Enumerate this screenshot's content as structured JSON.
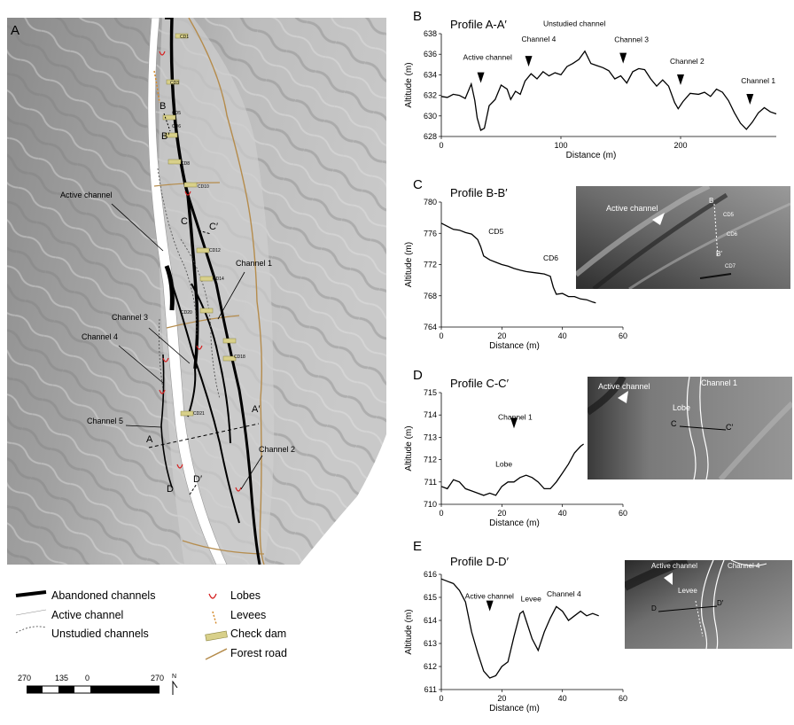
{
  "panels": {
    "A": "A",
    "B": "B",
    "C": "C",
    "D": "D",
    "E": "E"
  },
  "map": {
    "labels": {
      "active_channel": "Active channel",
      "channel_1": "Channel 1",
      "channel_2": "Channel 2",
      "channel_3": "Channel 3",
      "channel_4": "Channel 4",
      "channel_5": "Channel 5",
      "A": "A",
      "A_prime": "A′",
      "B": "B",
      "B_prime": "B′",
      "C": "C",
      "C_prime": "C′",
      "D": "D",
      "D_prime": "D′"
    },
    "check_dams": [
      "CD1",
      "CD3",
      "CD5",
      "CD6",
      "CD8",
      "CD10",
      "CD12",
      "CD14",
      "CD20",
      "CD18",
      "CD21"
    ]
  },
  "legend": {
    "abandoned": "Abandoned channels",
    "active": "Active channel",
    "unstudied": "Unstudied channels",
    "lobes": "Lobes",
    "levees": "Levees",
    "check_dam": "Check dam",
    "forest_road": "Forest road"
  },
  "scalebar": {
    "ticks": [
      "270",
      "135",
      "0",
      "270"
    ],
    "north": "N"
  },
  "chart_data": [
    {
      "id": "B",
      "type": "line",
      "title": "Profile A-A′",
      "xlabel": "Distance (m)",
      "ylabel": "Altitude (m)",
      "xlim": [
        0,
        280
      ],
      "ylim": [
        628,
        638
      ],
      "xticks": [
        0,
        100,
        200
      ],
      "yticks": [
        628,
        630,
        632,
        634,
        636,
        638
      ],
      "x": [
        0,
        5,
        10,
        15,
        20,
        25,
        28,
        30,
        33,
        36,
        40,
        45,
        50,
        55,
        58,
        62,
        66,
        70,
        75,
        80,
        85,
        90,
        95,
        100,
        105,
        110,
        115,
        120,
        125,
        130,
        135,
        140,
        145,
        150,
        155,
        160,
        165,
        170,
        175,
        180,
        185,
        190,
        195,
        198,
        202,
        208,
        215,
        220,
        225,
        230,
        235,
        240,
        245,
        250,
        255,
        260,
        265,
        270,
        275,
        280
      ],
      "y": [
        631.9,
        631.8,
        632.1,
        632.0,
        631.7,
        633.1,
        631.5,
        629.8,
        628.6,
        628.8,
        631.0,
        631.6,
        633.0,
        632.6,
        631.6,
        632.4,
        632.1,
        633.4,
        634.1,
        633.6,
        634.3,
        633.9,
        634.2,
        634.0,
        634.8,
        635.1,
        635.5,
        636.3,
        635.1,
        634.9,
        634.7,
        634.4,
        633.6,
        633.9,
        633.2,
        634.3,
        634.6,
        634.5,
        633.6,
        632.9,
        633.5,
        632.9,
        631.3,
        630.7,
        631.4,
        632.2,
        632.1,
        632.3,
        631.9,
        632.6,
        632.3,
        631.5,
        630.3,
        629.3,
        628.7,
        629.4,
        630.3,
        630.8,
        630.4,
        630.2
      ],
      "annotations": [
        {
          "text": "Active channel",
          "x": 33,
          "y": 633.2
        },
        {
          "text": "Channel 4",
          "x": 73,
          "y": 634.8
        },
        {
          "text": "Unstudied channel",
          "x": 97,
          "y": 636.3
        },
        {
          "text": "Channel 3",
          "x": 152,
          "y": 635.1
        },
        {
          "text": "Channel 2",
          "x": 200,
          "y": 633.0
        },
        {
          "text": "Channel 1",
          "x": 258,
          "y": 631.1
        }
      ]
    },
    {
      "id": "C",
      "type": "line",
      "title": "Profile B-B′",
      "xlabel": "Distance (m)",
      "ylabel": "Altitude (m)",
      "xlim": [
        0,
        60
      ],
      "ylim": [
        764,
        780
      ],
      "xticks": [
        0,
        20,
        40,
        60
      ],
      "yticks": [
        764,
        768,
        772,
        776,
        780
      ],
      "x": [
        0,
        2,
        4,
        6,
        8,
        10,
        12,
        13,
        14,
        16,
        18,
        20,
        22,
        24,
        26,
        28,
        30,
        32,
        34,
        36,
        37,
        38,
        40,
        42,
        44,
        46,
        48,
        50,
        51
      ],
      "y": [
        777.3,
        776.9,
        776.5,
        776.4,
        776.1,
        775.9,
        775.2,
        774.3,
        773.1,
        772.6,
        772.3,
        772.0,
        771.8,
        771.5,
        771.3,
        771.1,
        771.0,
        770.9,
        770.8,
        770.5,
        769.1,
        768.2,
        768.3,
        767.9,
        767.9,
        767.6,
        767.5,
        767.2,
        767.1
      ],
      "annotations": [
        {
          "text": "CD5",
          "x": 15,
          "y": 775
        },
        {
          "text": "CD6",
          "x": 36,
          "y": 771.6
        }
      ]
    },
    {
      "id": "D",
      "type": "line",
      "title": "Profile C-C′",
      "xlabel": "Distance (m)",
      "ylabel": "Altitude (m)",
      "xlim": [
        0,
        60
      ],
      "ylim": [
        710,
        715
      ],
      "xticks": [
        0,
        20,
        40,
        60
      ],
      "yticks": [
        710,
        711,
        712,
        713,
        714,
        715
      ],
      "x": [
        0,
        2,
        4,
        6,
        8,
        10,
        12,
        14,
        16,
        18,
        20,
        22,
        24,
        26,
        28,
        30,
        32,
        34,
        36,
        38,
        40,
        42,
        44,
        46,
        47
      ],
      "y": [
        710.8,
        710.7,
        711.1,
        711.0,
        710.7,
        710.6,
        710.5,
        710.4,
        710.5,
        710.4,
        710.8,
        711.0,
        711.0,
        711.2,
        711.3,
        711.2,
        711.0,
        710.7,
        710.7,
        711.0,
        711.4,
        711.8,
        712.3,
        712.6,
        712.7
      ],
      "annotations": [
        {
          "text": "Channel 1",
          "x": 24,
          "y": 713.4
        },
        {
          "text": "Lobe",
          "x": 22,
          "y": 711.6
        }
      ]
    },
    {
      "id": "E",
      "type": "line",
      "title": "Profile D-D′",
      "xlabel": "Distance (m)",
      "ylabel": "Altitude (m)",
      "xlim": [
        0,
        60
      ],
      "ylim": [
        611,
        616
      ],
      "xticks": [
        0,
        20,
        40,
        60
      ],
      "yticks": [
        611,
        612,
        613,
        614,
        615,
        616
      ],
      "x": [
        0,
        2,
        4,
        6,
        8,
        10,
        12,
        14,
        16,
        18,
        20,
        22,
        24,
        26,
        27,
        28,
        30,
        32,
        34,
        36,
        38,
        40,
        42,
        44,
        46,
        48,
        50,
        52
      ],
      "y": [
        615.8,
        615.7,
        615.6,
        615.3,
        614.8,
        613.5,
        612.6,
        611.8,
        611.5,
        611.6,
        612.0,
        612.2,
        613.3,
        614.3,
        614.4,
        614.0,
        613.2,
        612.7,
        613.5,
        614.1,
        614.6,
        614.4,
        614.0,
        614.2,
        614.4,
        614.2,
        614.3,
        614.2
      ],
      "annotations": [
        {
          "text": "Active channel",
          "x": 16,
          "y": 614.4
        },
        {
          "text": "Levee",
          "x": 28,
          "y": 614.6
        },
        {
          "text": "Channel 4",
          "x": 36,
          "y": 614.8
        }
      ]
    }
  ],
  "insets": {
    "C": {
      "labels": [
        "Active channel",
        "B",
        "CD5",
        "CD6",
        "B′",
        "CD7"
      ]
    },
    "D": {
      "labels": [
        "Active channel",
        "Channel 1",
        "Lobe",
        "C",
        "C′"
      ]
    },
    "E": {
      "labels": [
        "Active channel",
        "Channel 4",
        "Levee",
        "D",
        "D′"
      ]
    }
  }
}
